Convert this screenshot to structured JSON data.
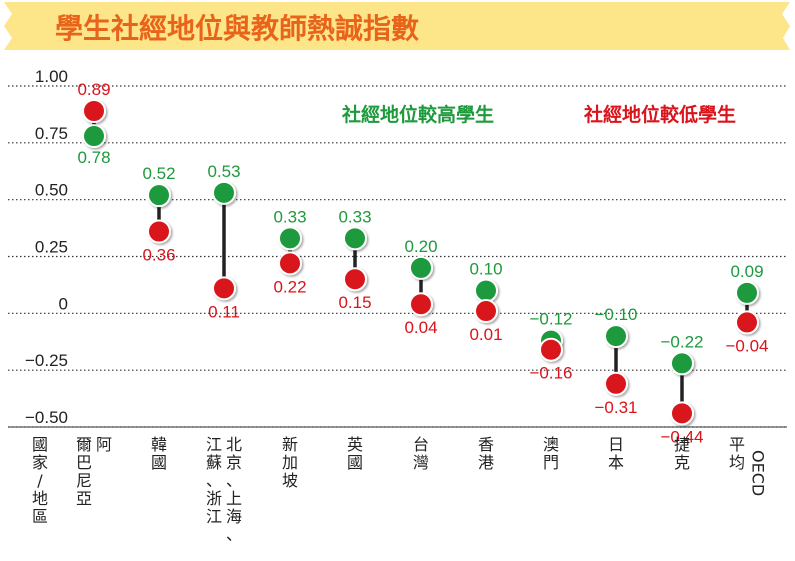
{
  "title": "學生社經地位與教師熱誠指數",
  "colors": {
    "title_banner": "#fde58a",
    "title_text": "#e8641a",
    "high_ses": "#1e9a3c",
    "low_ses": "#d9141c",
    "connector": "#222222",
    "grid": "#333333"
  },
  "chart_data": {
    "type": "dumbbell",
    "title": "學生社經地位與教師熱誠指數",
    "axis_header": "國家/地區",
    "ylim": [
      -0.5,
      1.0
    ],
    "yticks": [
      1.0,
      0.75,
      0.5,
      0.25,
      0,
      -0.25,
      -0.5
    ],
    "ytick_labels": [
      "1.00",
      "0.75",
      "0.50",
      "0.25",
      "0",
      "−0.25",
      "−0.50"
    ],
    "grid": true,
    "legend_position": "top-right",
    "series": [
      {
        "name": "社經地位較高學生",
        "color": "#1e9a3c",
        "values": [
          0.78,
          0.52,
          0.53,
          0.33,
          0.33,
          0.2,
          0.1,
          -0.12,
          -0.1,
          -0.22,
          0.09
        ]
      },
      {
        "name": "社經地位較低學生",
        "color": "#d9141c",
        "values": [
          0.89,
          0.36,
          0.11,
          0.22,
          0.15,
          0.04,
          0.01,
          -0.16,
          -0.31,
          -0.44,
          -0.04
        ]
      }
    ],
    "high_labels": [
      "0.78",
      "0.52",
      "0.53",
      "0.33",
      "0.33",
      "0.20",
      "0.10",
      "−0.12",
      "−0.10",
      "−0.22",
      "0.09"
    ],
    "low_labels": [
      "0.89",
      "0.36",
      "0.11",
      "0.22",
      "0.15",
      "0.04",
      "0.01",
      "−0.16",
      "−0.31",
      "−0.44",
      "−0.04"
    ],
    "categories": [
      {
        "columns": [
          "阿",
          "爾巴尼亞"
        ]
      },
      {
        "columns": [
          "韓國"
        ]
      },
      {
        "columns": [
          "北京、上海、",
          "江蘇、浙江"
        ]
      },
      {
        "columns": [
          "新加坡"
        ]
      },
      {
        "columns": [
          "英國"
        ]
      },
      {
        "columns": [
          "台灣"
        ]
      },
      {
        "columns": [
          "香港"
        ]
      },
      {
        "columns": [
          "澳門"
        ]
      },
      {
        "columns": [
          "日本"
        ]
      },
      {
        "columns": [
          "捷克"
        ]
      },
      {
        "columns": [
          "OECD",
          "平均"
        ]
      }
    ]
  }
}
